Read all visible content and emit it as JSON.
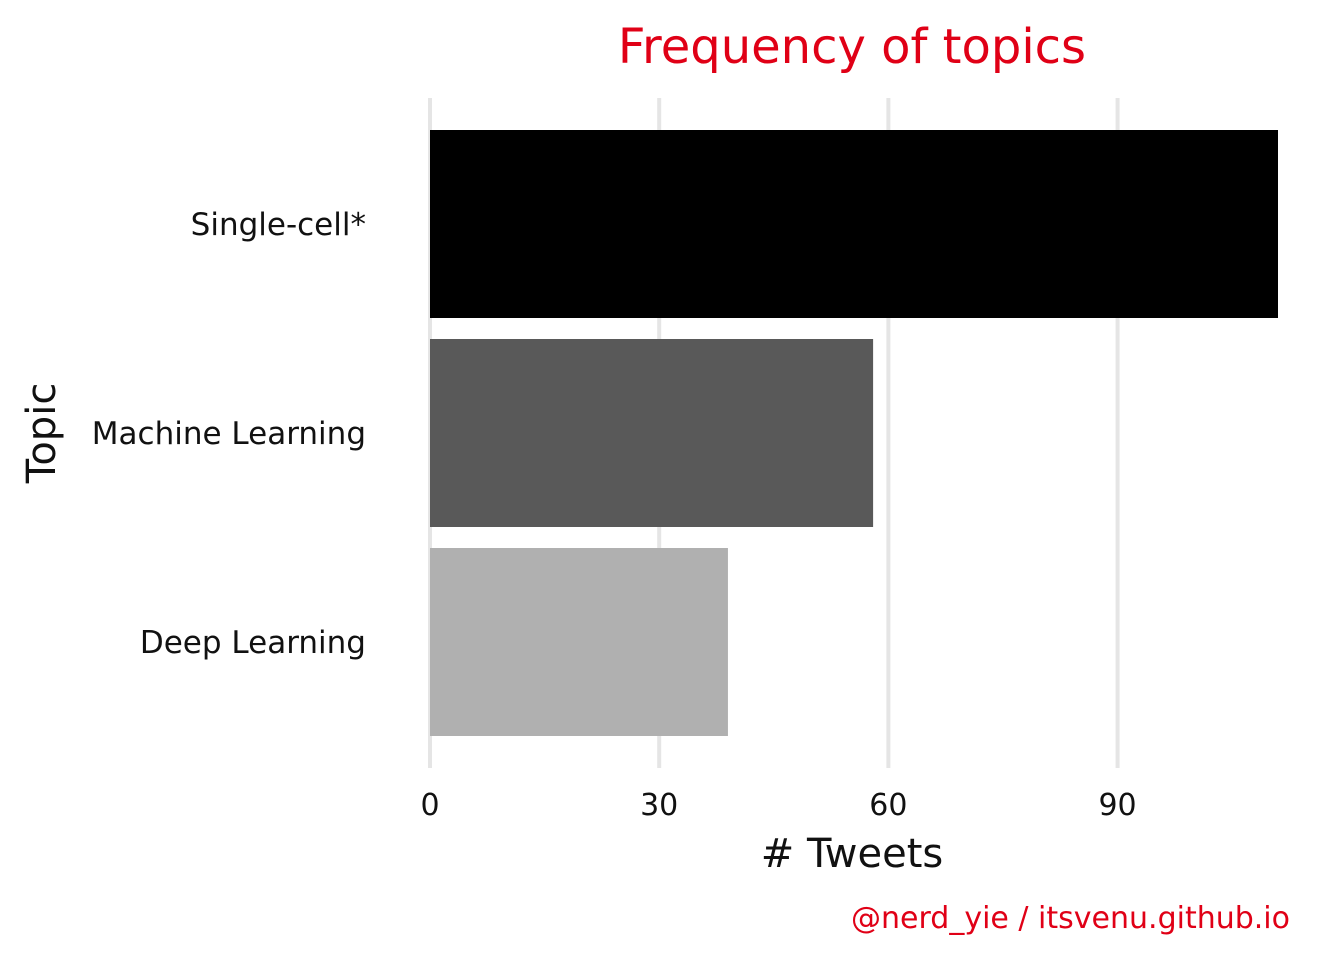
{
  "chart_data": {
    "type": "bar",
    "orientation": "horizontal",
    "title": "Frequency of topics",
    "xlabel": "# Tweets",
    "ylabel": "Topic",
    "caption": "@nerd_yie / itsvenu.github.io",
    "categories": [
      "Single-cell*",
      "Machine Learning",
      "Deep Learning"
    ],
    "values": [
      111,
      58,
      39
    ],
    "bar_colors": [
      "#000000",
      "#595959",
      "#b0b0b0"
    ],
    "xlim": [
      0,
      111
    ],
    "x_ticks": [
      0,
      30,
      60,
      90
    ],
    "x_tick_labels": [
      "0",
      "30",
      "60",
      "90"
    ],
    "grid": true,
    "legend": "none"
  },
  "colors": {
    "accent": "#e00016",
    "grid": "#e5e5e5",
    "text": "#111111"
  }
}
